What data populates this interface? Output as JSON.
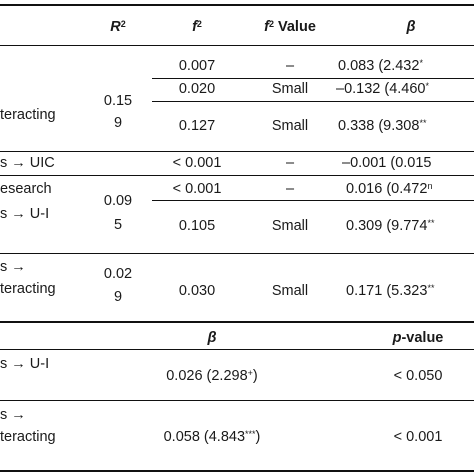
{
  "header": {
    "r2_label": "R",
    "r2_sup": "2",
    "f2_label": "f",
    "f2_sup": "2",
    "f2_value_sup": "2",
    "f2_value_text": " Value",
    "beta_label": "β"
  },
  "rows": [
    {
      "f2": "0.007",
      "f2v": "–",
      "beta": "0.083 (2.432",
      "beta_sup": "*"
    },
    {
      "path": "",
      "r2": "0.15\n9",
      "f2": "0.020",
      "f2v": "Small",
      "beta": "–0.132 (4.460",
      "beta_sup": "*"
    },
    {
      "path": "teracting",
      "f2": "0.127",
      "f2v": "Small",
      "beta": "0.338 (9.308",
      "beta_sup": "**"
    },
    {
      "path": "s → UIC",
      "f2": "< 0.001",
      "f2v": "–",
      "beta": "–0.001 (0.015"
    },
    {
      "path": "esearch",
      "f2": "< 0.001",
      "f2v": "–",
      "beta": "0.016 (0.472",
      "beta_sup": "n"
    },
    {
      "path": "s → U-I",
      "r2": "0.09\n5",
      "f2": "0.105",
      "f2v": "Small",
      "beta": "0.309 (9.774",
      "beta_sup": "**"
    },
    {
      "path_line1": "s →",
      "path_line2": "teracting",
      "r2": "0.02\n9",
      "f2": "0.030",
      "f2v": "Small",
      "beta": "0.171 (5.323",
      "beta_sup": "**"
    }
  ],
  "second": {
    "beta_label": "β",
    "p_label_italic": "p",
    "p_label_rest": "-value",
    "rows": [
      {
        "path": "s → U-I",
        "beta": "0.026 (2.298",
        "beta_sup": "+",
        "beta_close": ")",
        "p": "< 0.050"
      },
      {
        "path_line1": "s →",
        "path_line2": "teracting",
        "beta": "0.058 (4.843",
        "beta_sup": "***",
        "beta_close": ")",
        "p": "< 0.001"
      }
    ]
  },
  "r2_values": {
    "block1_a": "0.15",
    "block1_b": "9",
    "block2_a": "0.09",
    "block2_b": "5",
    "block3_a": "0.02",
    "block3_b": "9"
  }
}
